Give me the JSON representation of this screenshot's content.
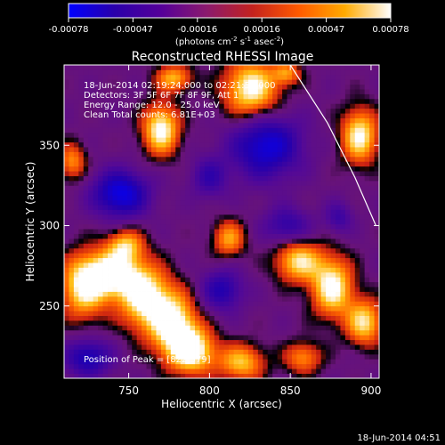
{
  "chart_data": {
    "type": "heatmap",
    "title": "Reconstructed RHESSI Image",
    "colorbar": {
      "ticks": [
        "-0.00078",
        "-0.00047",
        "-0.00016",
        "0.00016",
        "0.00047",
        "0.00078"
      ],
      "units_prefix": "(photons cm",
      "units_exp1": "-2",
      "units_mid": " s",
      "units_exp2": "-1",
      "units_mid2": " asec",
      "units_exp3": "-2",
      "units_suffix": ")",
      "colors": [
        "#0000ff",
        "#2a00aa",
        "#550099",
        "#8b1a6e",
        "#c4221e",
        "#ff5a00",
        "#ffaa00",
        "#ffffff"
      ]
    },
    "xlabel": "Heliocentric X (arcsec)",
    "ylabel": "Heliocentric Y (arcsec)",
    "xlim": [
      710,
      905
    ],
    "ylim": [
      205,
      400
    ],
    "x_ticks": [
      "750",
      "800",
      "850",
      "900"
    ],
    "y_ticks": [
      "250",
      "300",
      "350"
    ],
    "x_tick_values": [
      750,
      800,
      850,
      900
    ],
    "y_tick_values": [
      250,
      300,
      350
    ],
    "annotations": {
      "time_range": "18-Jun-2014 02:19:24.000 to 02:21:56.000",
      "detectors": "Detectors: 3F 5F 6F 7F 8F 9F, Att 1",
      "energy": "Energy Range: 12.0 - 25.0 keV",
      "clean": "Clean     Total counts: 6.81E+03",
      "peak": "Position of Peak = [822,379]"
    },
    "limb_curve": [
      [
        850,
        400
      ],
      [
        873,
        364
      ],
      [
        890,
        330
      ],
      [
        903,
        300
      ]
    ],
    "blobs": [
      {
        "x": 722,
        "y": 262,
        "sx": 10,
        "sy": 14,
        "v": 0.9
      },
      {
        "x": 740,
        "y": 270,
        "sx": 12,
        "sy": 10,
        "v": 1.0
      },
      {
        "x": 760,
        "y": 255,
        "sx": 11,
        "sy": 14,
        "v": 1.0
      },
      {
        "x": 778,
        "y": 238,
        "sx": 10,
        "sy": 14,
        "v": 1.0
      },
      {
        "x": 790,
        "y": 222,
        "sx": 10,
        "sy": 10,
        "v": 0.95
      },
      {
        "x": 748,
        "y": 288,
        "sx": 8,
        "sy": 7,
        "v": 0.7
      },
      {
        "x": 770,
        "y": 360,
        "sx": 8,
        "sy": 11,
        "v": 1.0
      },
      {
        "x": 778,
        "y": 392,
        "sx": 8,
        "sy": 6,
        "v": 0.7
      },
      {
        "x": 826,
        "y": 385,
        "sx": 12,
        "sy": 13,
        "v": 1.0
      },
      {
        "x": 848,
        "y": 395,
        "sx": 6,
        "sy": 5,
        "v": 0.55
      },
      {
        "x": 893,
        "y": 356,
        "sx": 8,
        "sy": 12,
        "v": 0.95
      },
      {
        "x": 855,
        "y": 278,
        "sx": 10,
        "sy": 9,
        "v": 0.85
      },
      {
        "x": 876,
        "y": 262,
        "sx": 9,
        "sy": 13,
        "v": 1.0
      },
      {
        "x": 896,
        "y": 240,
        "sx": 8,
        "sy": 10,
        "v": 0.85
      },
      {
        "x": 812,
        "y": 292,
        "sx": 7,
        "sy": 8,
        "v": 0.65
      },
      {
        "x": 820,
        "y": 215,
        "sx": 10,
        "sy": 8,
        "v": 0.75
      },
      {
        "x": 858,
        "y": 218,
        "sx": 8,
        "sy": 7,
        "v": 0.6
      },
      {
        "x": 715,
        "y": 340,
        "sx": 6,
        "sy": 8,
        "v": 0.6
      },
      {
        "x": 745,
        "y": 320,
        "sx": 12,
        "sy": 10,
        "v": -0.9
      },
      {
        "x": 835,
        "y": 350,
        "sx": 15,
        "sy": 14,
        "v": -0.85
      },
      {
        "x": 725,
        "y": 218,
        "sx": 10,
        "sy": 8,
        "v": -0.7
      },
      {
        "x": 808,
        "y": 260,
        "sx": 9,
        "sy": 9,
        "v": -0.6
      },
      {
        "x": 848,
        "y": 300,
        "sx": 10,
        "sy": 8,
        "v": -0.5
      },
      {
        "x": 800,
        "y": 330,
        "sx": 8,
        "sy": 9,
        "v": -0.45
      },
      {
        "x": 880,
        "y": 305,
        "sx": 6,
        "sy": 7,
        "v": -0.4
      }
    ]
  },
  "footer_timestamp": "18-Jun-2014 04:51"
}
